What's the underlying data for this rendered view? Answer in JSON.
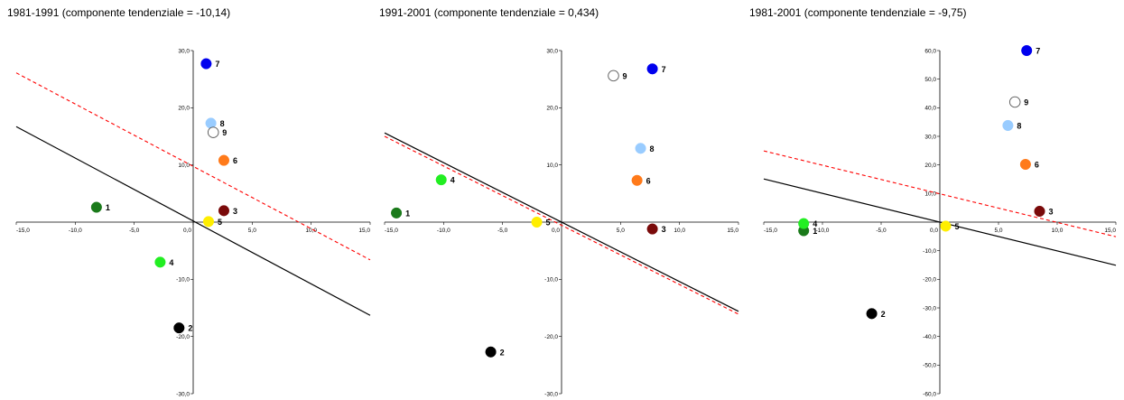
{
  "chart_data": [
    {
      "type": "scatter",
      "title": "1981-1991 (componente tendenziale = -10,14)",
      "xlim": [
        -15,
        15
      ],
      "ylim": [
        -30,
        30
      ],
      "xticks": [
        -15,
        -10,
        -5,
        0,
        5,
        10,
        15
      ],
      "yticks": [
        -30,
        -20,
        -10,
        10,
        20,
        30
      ],
      "xtick_labels": [
        "-15,0",
        "-10,0",
        "-5,0",
        "0,0",
        "5,0",
        "10,0",
        "15,0"
      ],
      "ytick_labels": [
        "-30,0",
        "-20,0",
        "-10,0",
        "10,0",
        "20,0",
        "30,0"
      ],
      "grid": false,
      "points": [
        {
          "label": "1",
          "x": -8.2,
          "y": 2.6,
          "color": "#1a7a1a"
        },
        {
          "label": "2",
          "x": -1.2,
          "y": -18.5,
          "color": "#000000"
        },
        {
          "label": "3",
          "x": 2.6,
          "y": 2.0,
          "color": "#7a0a0a"
        },
        {
          "label": "4",
          "x": -2.8,
          "y": -7.0,
          "color": "#22ee22"
        },
        {
          "label": "5",
          "x": 1.3,
          "y": 0.1,
          "color": "#ffee00"
        },
        {
          "label": "6",
          "x": 2.6,
          "y": 10.8,
          "color": "#ff7a1a"
        },
        {
          "label": "7",
          "x": 1.1,
          "y": 27.7,
          "color": "#0000ee"
        },
        {
          "label": "8",
          "x": 1.5,
          "y": 17.3,
          "color": "#99ccff"
        },
        {
          "label": "9",
          "x": 1.7,
          "y": 15.7,
          "color": "#ffffff"
        }
      ],
      "lines": [
        {
          "style": "solid",
          "color": "#000000",
          "x": [
            -15,
            15
          ],
          "y": [
            16.7,
            -16.3
          ]
        },
        {
          "style": "dashed",
          "color": "#ff0000",
          "x": [
            -15,
            15
          ],
          "y": [
            26.1,
            -6.6
          ]
        }
      ]
    },
    {
      "type": "scatter",
      "title": "1991-2001 (componente tendenziale = 0,434)",
      "xlim": [
        -15,
        15
      ],
      "ylim": [
        -30,
        30
      ],
      "xticks": [
        -15,
        -10,
        -5,
        0,
        5,
        10,
        15
      ],
      "yticks": [
        -30,
        -20,
        -10,
        10,
        20,
        30
      ],
      "xtick_labels": [
        "-15,0",
        "-10,0",
        "-5,0",
        "0,0",
        "5,0",
        "10,0",
        "15,0"
      ],
      "ytick_labels": [
        "-30,0",
        "-20,0",
        "-10,0",
        "10,0",
        "20,0",
        "30,0"
      ],
      "grid": false,
      "points": [
        {
          "label": "1",
          "x": -14.0,
          "y": 1.6,
          "color": "#1a7a1a"
        },
        {
          "label": "2",
          "x": -6.0,
          "y": -22.7,
          "color": "#000000"
        },
        {
          "label": "3",
          "x": 7.7,
          "y": -1.2,
          "color": "#7a0a0a"
        },
        {
          "label": "4",
          "x": -10.2,
          "y": 7.4,
          "color": "#22ee22"
        },
        {
          "label": "5",
          "x": -2.1,
          "y": 0.0,
          "color": "#ffee00"
        },
        {
          "label": "6",
          "x": 6.4,
          "y": 7.3,
          "color": "#ff7a1a"
        },
        {
          "label": "7",
          "x": 7.7,
          "y": 26.8,
          "color": "#0000ee"
        },
        {
          "label": "8",
          "x": 6.7,
          "y": 12.9,
          "color": "#99ccff"
        },
        {
          "label": "9",
          "x": 4.4,
          "y": 25.6,
          "color": "#ffffff"
        }
      ],
      "lines": [
        {
          "style": "solid",
          "color": "#000000",
          "x": [
            -15,
            15
          ],
          "y": [
            15.6,
            -15.6
          ]
        },
        {
          "style": "dashed",
          "color": "#ff0000",
          "x": [
            -15,
            15
          ],
          "y": [
            15.0,
            -16.1
          ]
        }
      ]
    },
    {
      "type": "scatter",
      "title": "1981-2001 (componente tendenziale = -9,75)",
      "xlim": [
        -15,
        15
      ],
      "ylim": [
        -60,
        60
      ],
      "xticks": [
        -15,
        -10,
        -5,
        0,
        5,
        10,
        15
      ],
      "yticks": [
        -60,
        -50,
        -40,
        -30,
        -20,
        -10,
        10,
        20,
        30,
        40,
        50,
        60
      ],
      "xtick_labels": [
        "-15,0",
        "-10,0",
        "-5,0",
        "0,0",
        "5,0",
        "10,0",
        "15,0"
      ],
      "ytick_labels": [
        "-60,0",
        "-50,0",
        "-40,0",
        "-30,0",
        "-20,0",
        "-10,0",
        "10,0",
        "20,0",
        "30,0",
        "40,0",
        "50,0",
        "60,0"
      ],
      "grid": false,
      "points": [
        {
          "label": "1",
          "x": -11.6,
          "y": -3.0,
          "color": "#1a7a1a"
        },
        {
          "label": "2",
          "x": -5.8,
          "y": -32.0,
          "color": "#000000"
        },
        {
          "label": "3",
          "x": 8.5,
          "y": 3.8,
          "color": "#7a0a0a"
        },
        {
          "label": "4",
          "x": -11.6,
          "y": -0.5,
          "color": "#22ee22"
        },
        {
          "label": "5",
          "x": 0.5,
          "y": -1.4,
          "color": "#ffee00"
        },
        {
          "label": "6",
          "x": 7.3,
          "y": 20.2,
          "color": "#ff7a1a"
        },
        {
          "label": "7",
          "x": 7.4,
          "y": 60.0,
          "color": "#0000ee"
        },
        {
          "label": "8",
          "x": 5.8,
          "y": 33.8,
          "color": "#99ccff"
        },
        {
          "label": "9",
          "x": 6.4,
          "y": 42.0,
          "color": "#ffffff"
        }
      ],
      "lines": [
        {
          "style": "solid",
          "color": "#000000",
          "x": [
            -15,
            15
          ],
          "y": [
            15.1,
            -15.1
          ]
        },
        {
          "style": "dashed",
          "color": "#ff0000",
          "x": [
            -15,
            15
          ],
          "y": [
            24.9,
            -5.1
          ]
        }
      ]
    }
  ]
}
